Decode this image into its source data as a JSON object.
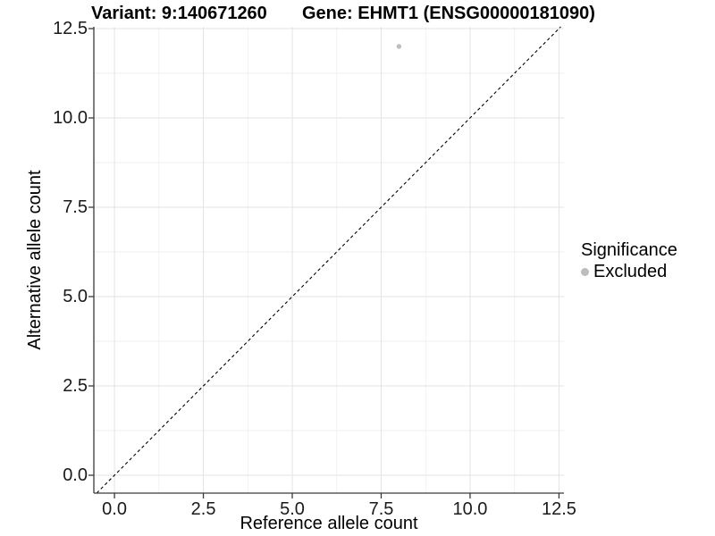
{
  "page": {
    "title_left": "Variant: 9:140671260",
    "title_right": "Gene: EHMT1 (ENSG00000181090)"
  },
  "chart_data": {
    "type": "scatter",
    "title": "Variant: 9:140671260    Gene: EHMT1 (ENSG00000181090)",
    "xlabel": "Reference allele count",
    "ylabel": "Alternative allele count",
    "x_range": [
      -0.58,
      12.64
    ],
    "y_range": [
      -0.5,
      12.55
    ],
    "x_tick_values": [
      0,
      2.5,
      5,
      7.5,
      10,
      12.5
    ],
    "y_tick_values": [
      0,
      2.5,
      5,
      7.5,
      10,
      12.5
    ],
    "x_tick_labels": [
      "0.0",
      "2.5",
      "5.0",
      "7.5",
      "10.0",
      "12.5"
    ],
    "y_tick_labels": [
      "0.0",
      "2.5",
      "5.0",
      "7.5",
      "10.0",
      "12.5"
    ],
    "x_minor_ticks": [
      1.25,
      3.75,
      6.25,
      8.75,
      11.25
    ],
    "y_minor_ticks": [
      1.25,
      3.75,
      6.25,
      8.75,
      11.25
    ],
    "grid": "major+minor",
    "reference_line": {
      "kind": "identity y=x",
      "slope": 1,
      "intercept": 0,
      "style": "dashed",
      "color": "#000000"
    },
    "series": [
      {
        "name": "Excluded",
        "color": "#bdbdbd",
        "points": [
          {
            "x": 8,
            "y": 12
          }
        ]
      }
    ],
    "legend": {
      "title": "Significance",
      "position": "right",
      "items": [
        {
          "label": "Excluded",
          "color": "#bdbdbd",
          "marker": "circle"
        }
      ]
    },
    "style": {
      "grid_major_color": "#e3e3e3",
      "grid_minor_color": "#efefef",
      "axis_line_color": "#3a3a3a",
      "tick_color": "#3a3a3a",
      "tick_label_color": "#1a1a1a",
      "point_radius": 2.7,
      "dash_pattern": "3.5 3"
    }
  }
}
